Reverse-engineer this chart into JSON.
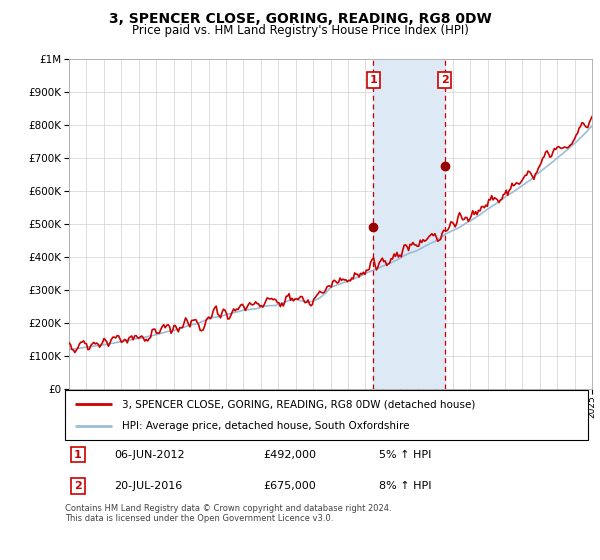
{
  "title": "3, SPENCER CLOSE, GORING, READING, RG8 0DW",
  "subtitle": "Price paid vs. HM Land Registry's House Price Index (HPI)",
  "legend_line1": "3, SPENCER CLOSE, GORING, READING, RG8 0DW (detached house)",
  "legend_line2": "HPI: Average price, detached house, South Oxfordshire",
  "annotation1_label": "1",
  "annotation1_date": "06-JUN-2012",
  "annotation1_price": "£492,000",
  "annotation1_hpi": "5% ↑ HPI",
  "annotation2_label": "2",
  "annotation2_date": "20-JUL-2016",
  "annotation2_price": "£675,000",
  "annotation2_hpi": "8% ↑ HPI",
  "footer": "Contains HM Land Registry data © Crown copyright and database right 2024.\nThis data is licensed under the Open Government Licence v3.0.",
  "sale1_year": 2012.44,
  "sale1_value": 492000,
  "sale2_year": 2016.55,
  "sale2_value": 675000,
  "hpi_color": "#9bbdd6",
  "price_color": "#cc0000",
  "sale_dot_color": "#990000",
  "vline_color": "#cc0000",
  "highlight_color": "#ddeaf5",
  "ylim_min": 0,
  "ylim_max": 1000000,
  "year_start": 1995,
  "year_end": 2025,
  "title_fontsize": 10,
  "subtitle_fontsize": 8.5
}
